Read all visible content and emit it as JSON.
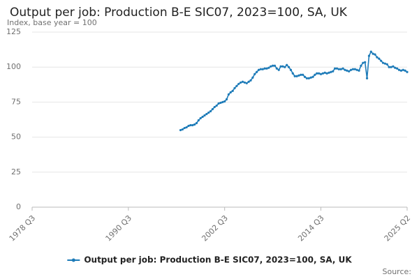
{
  "chart_data": {
    "type": "line",
    "title": "Output per job: Production B-E SIC07, 2023=100, SA, UK",
    "y_label": "Index, base year = 100",
    "source": "Source:",
    "categories": [
      "1978 Q3",
      null,
      null,
      null,
      null,
      null,
      null,
      null,
      null,
      null,
      null,
      null,
      null,
      null,
      null,
      null,
      null,
      null,
      null,
      null,
      null,
      null,
      null,
      null,
      null,
      null,
      null,
      null,
      null,
      null,
      null,
      null,
      null,
      null,
      null,
      null,
      null,
      null,
      null,
      null,
      null,
      null,
      null,
      null,
      null,
      null,
      null,
      null,
      "1990 Q3",
      null,
      null,
      null,
      null,
      null,
      null,
      null,
      null,
      null,
      null,
      null,
      null,
      null,
      null,
      null,
      null,
      null,
      null,
      null,
      null,
      null,
      null,
      null,
      null,
      null,
      null,
      null,
      null,
      null,
      null,
      null,
      null,
      null,
      null,
      null,
      null,
      null,
      null,
      null,
      null,
      null,
      null,
      null,
      null,
      null,
      null,
      null,
      "2002 Q3",
      null,
      null,
      null,
      null,
      null,
      null,
      null,
      null,
      null,
      null,
      null,
      null,
      null,
      null,
      null,
      null,
      null,
      null,
      null,
      null,
      null,
      null,
      null,
      null,
      null,
      null,
      null,
      null,
      null,
      null,
      null,
      null,
      null,
      null,
      null,
      null,
      null,
      null,
      null,
      null,
      null,
      null,
      null,
      null,
      null,
      null,
      null,
      "2014 Q3",
      null,
      null,
      null,
      null,
      null,
      null,
      null,
      null,
      null,
      null,
      null,
      null,
      null,
      null,
      null,
      null,
      null,
      null,
      null,
      null,
      null,
      null,
      null,
      null,
      null,
      null,
      null,
      null,
      null,
      null,
      null,
      null,
      null,
      null,
      null,
      null,
      null,
      null,
      null,
      null,
      null,
      null,
      "2025 Q2"
    ],
    "series": [
      {
        "name": "Output per job: Production B-E SIC07, 2023=100, SA, UK",
        "color": "#1d7bb8",
        "values": [
          null,
          null,
          null,
          null,
          null,
          null,
          null,
          null,
          null,
          null,
          null,
          null,
          null,
          null,
          null,
          null,
          null,
          null,
          null,
          null,
          null,
          null,
          null,
          null,
          null,
          null,
          null,
          null,
          null,
          null,
          null,
          null,
          null,
          null,
          null,
          null,
          null,
          null,
          null,
          null,
          null,
          null,
          null,
          null,
          null,
          null,
          null,
          null,
          null,
          null,
          null,
          null,
          null,
          null,
          null,
          null,
          null,
          null,
          null,
          null,
          null,
          null,
          null,
          null,
          null,
          null,
          null,
          null,
          null,
          null,
          null,
          null,
          null,
          null,
          55,
          55.5,
          56.5,
          57,
          58,
          58.5,
          58.5,
          59,
          60,
          62,
          63.5,
          64.5,
          65.5,
          66.5,
          67.5,
          68.5,
          70,
          71.5,
          72.5,
          74,
          74.5,
          75,
          75.5,
          77,
          80.5,
          82,
          83,
          85,
          86.5,
          88,
          89,
          89.5,
          89,
          88.5,
          89.5,
          90.5,
          92.5,
          95,
          96.5,
          98,
          98.5,
          98.5,
          99,
          99,
          99.5,
          100.5,
          101,
          101,
          99,
          98,
          100.5,
          100.5,
          100,
          101.5,
          100,
          98,
          95.5,
          93.5,
          93.5,
          94,
          94.5,
          94.5,
          93,
          92,
          92,
          92.5,
          93,
          94.5,
          95.5,
          95.5,
          95,
          95.5,
          96,
          95.5,
          96,
          96.5,
          97,
          99,
          99,
          98.5,
          98.5,
          99,
          98,
          97.5,
          97,
          98,
          98.5,
          98.5,
          98,
          97.5,
          101,
          103,
          103.5,
          92,
          108,
          111,
          109.5,
          109,
          107,
          106,
          104.5,
          103,
          102.5,
          102,
          100,
          100,
          100.5,
          99.5,
          99,
          98,
          97.5,
          98,
          97.5,
          96.5
        ]
      }
    ],
    "ylim": [
      0,
      125
    ],
    "yticks": [
      0,
      25,
      50,
      75,
      100,
      125
    ],
    "grid": true,
    "legend": "bottom"
  }
}
